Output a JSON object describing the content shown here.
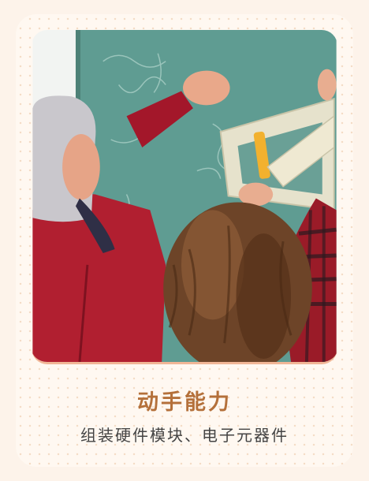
{
  "card": {
    "title": "动手能力",
    "subtitle": "组装硬件模块、电子元器件",
    "colors": {
      "background": "#fdf3ea",
      "card": "#fff8f1",
      "title": "#b4703a",
      "subtitle": "#444444",
      "accent_border": "#f1b696"
    }
  },
  "photo": {
    "image_name": "teacher-and-student-with-triangle-ruler-at-chalkboard"
  }
}
